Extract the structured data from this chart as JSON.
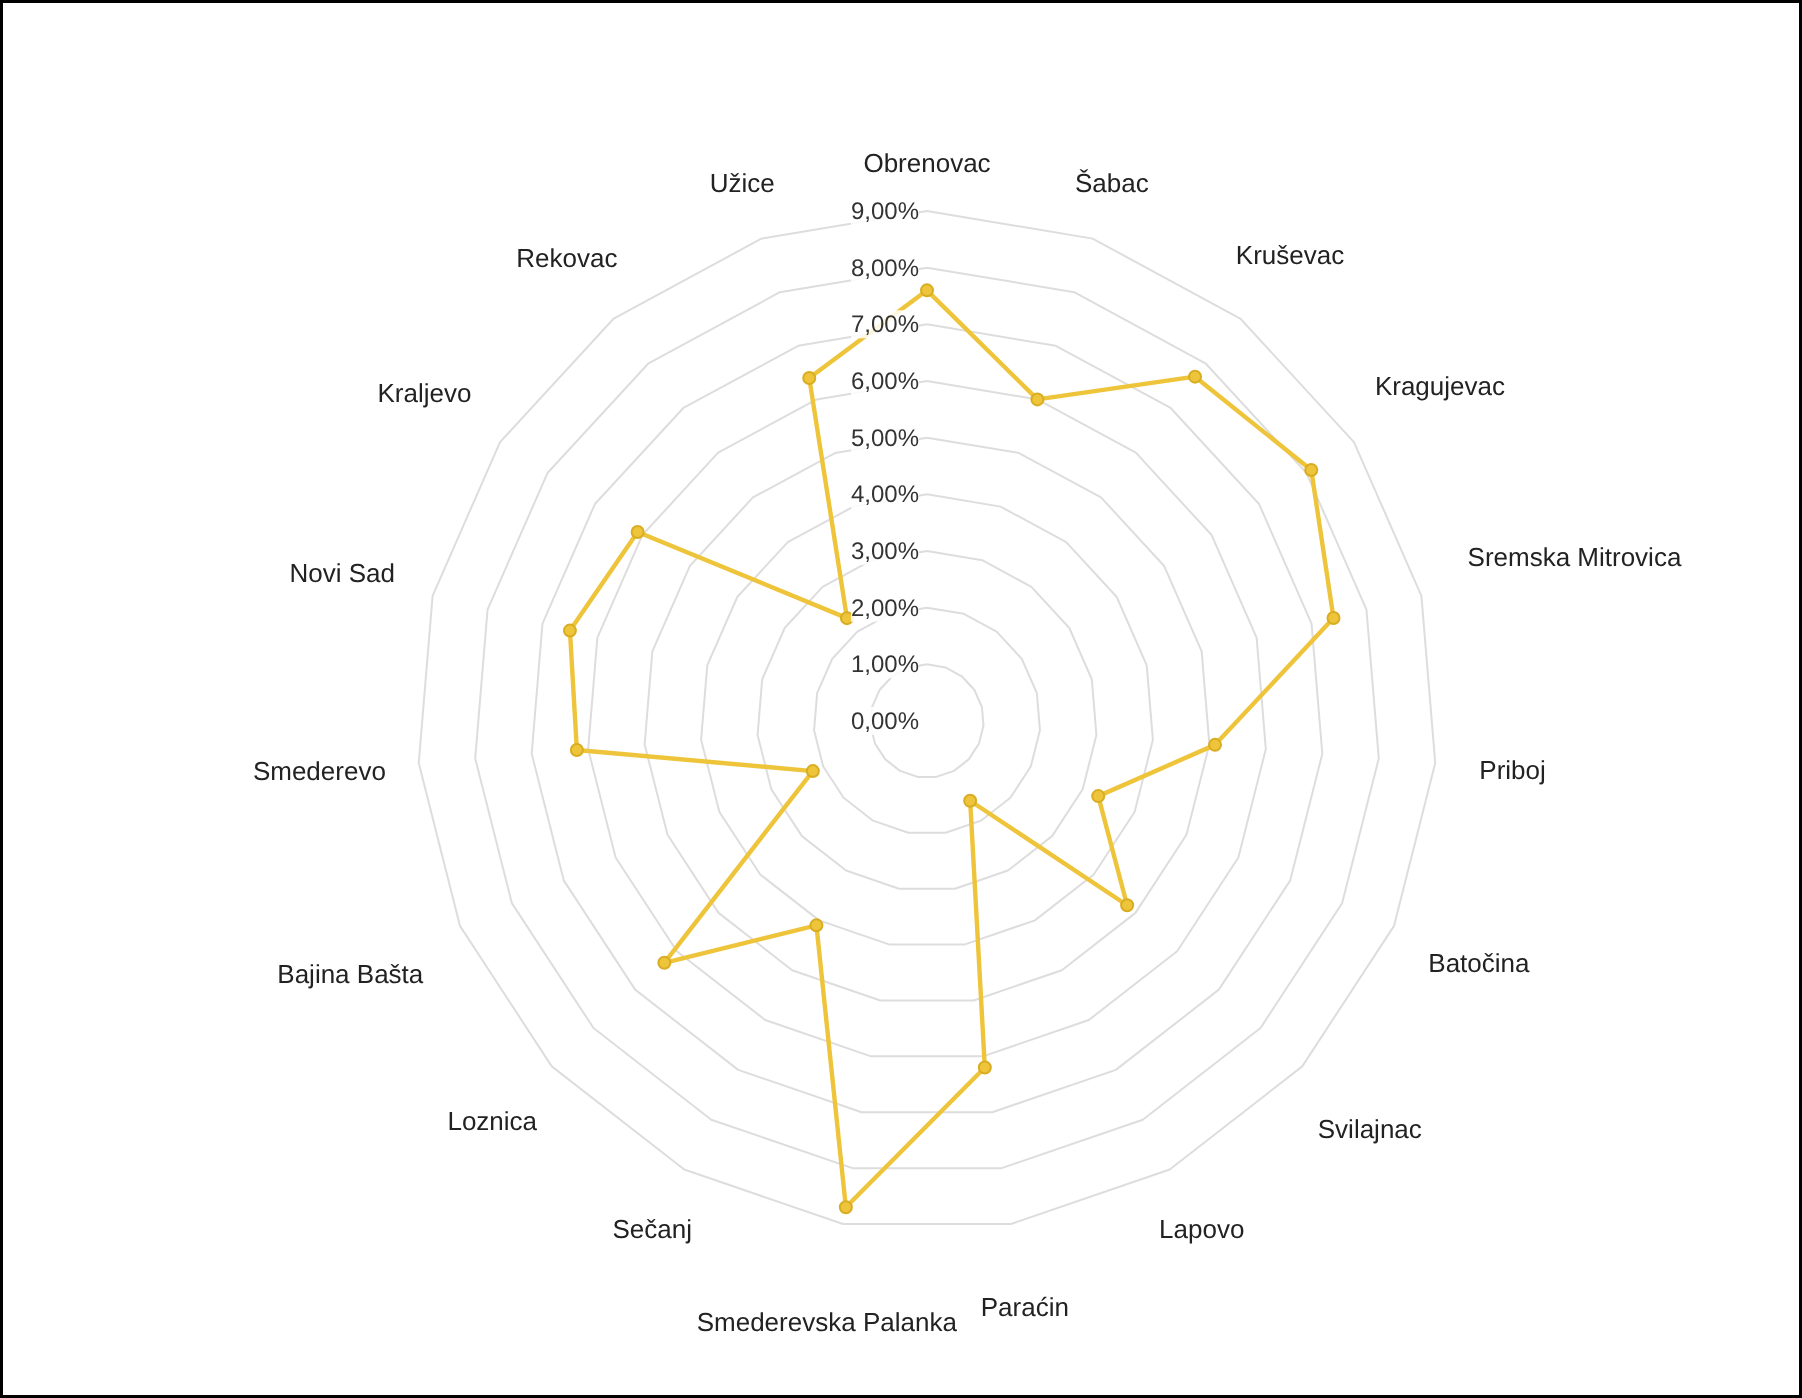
{
  "chart_data": {
    "type": "radar",
    "categories": [
      "Obrenovac",
      "Šabac",
      "Kruševac",
      "Kragujevac",
      "Sremska Mitrovica",
      "Priboj",
      "Batočina",
      "Svilajnac",
      "Lapovo",
      "Paraćin",
      "Smederevska Palanka",
      "Sečanj",
      "Loznica",
      "Bajina Bašta",
      "Smederevo",
      "Novi Sad",
      "Kraljevo",
      "Rekovac",
      "Užice"
    ],
    "series": [
      {
        "color": "#eec43b",
        "values": [
          7.6,
          6.0,
          7.7,
          8.1,
          7.4,
          5.1,
          3.3,
          4.8,
          1.6,
          6.2,
          8.7,
          4.1,
          6.3,
          2.2,
          6.2,
          6.5,
          6.1,
          2.3,
          6.4
        ]
      }
    ],
    "ylim": [
      0,
      9
    ],
    "yticks": [
      {
        "value": 0,
        "label": "0,00%"
      },
      {
        "value": 1,
        "label": "1,00%"
      },
      {
        "value": 2,
        "label": "2,00%"
      },
      {
        "value": 3,
        "label": "3,00%"
      },
      {
        "value": 4,
        "label": "4,00%"
      },
      {
        "value": 5,
        "label": "5,00%"
      },
      {
        "value": 6,
        "label": "6,00%"
      },
      {
        "value": 7,
        "label": "7,00%"
      },
      {
        "value": 8,
        "label": "8,00%"
      },
      {
        "value": 9,
        "label": "9,00%"
      }
    ],
    "grid": true,
    "marker": "circle"
  }
}
